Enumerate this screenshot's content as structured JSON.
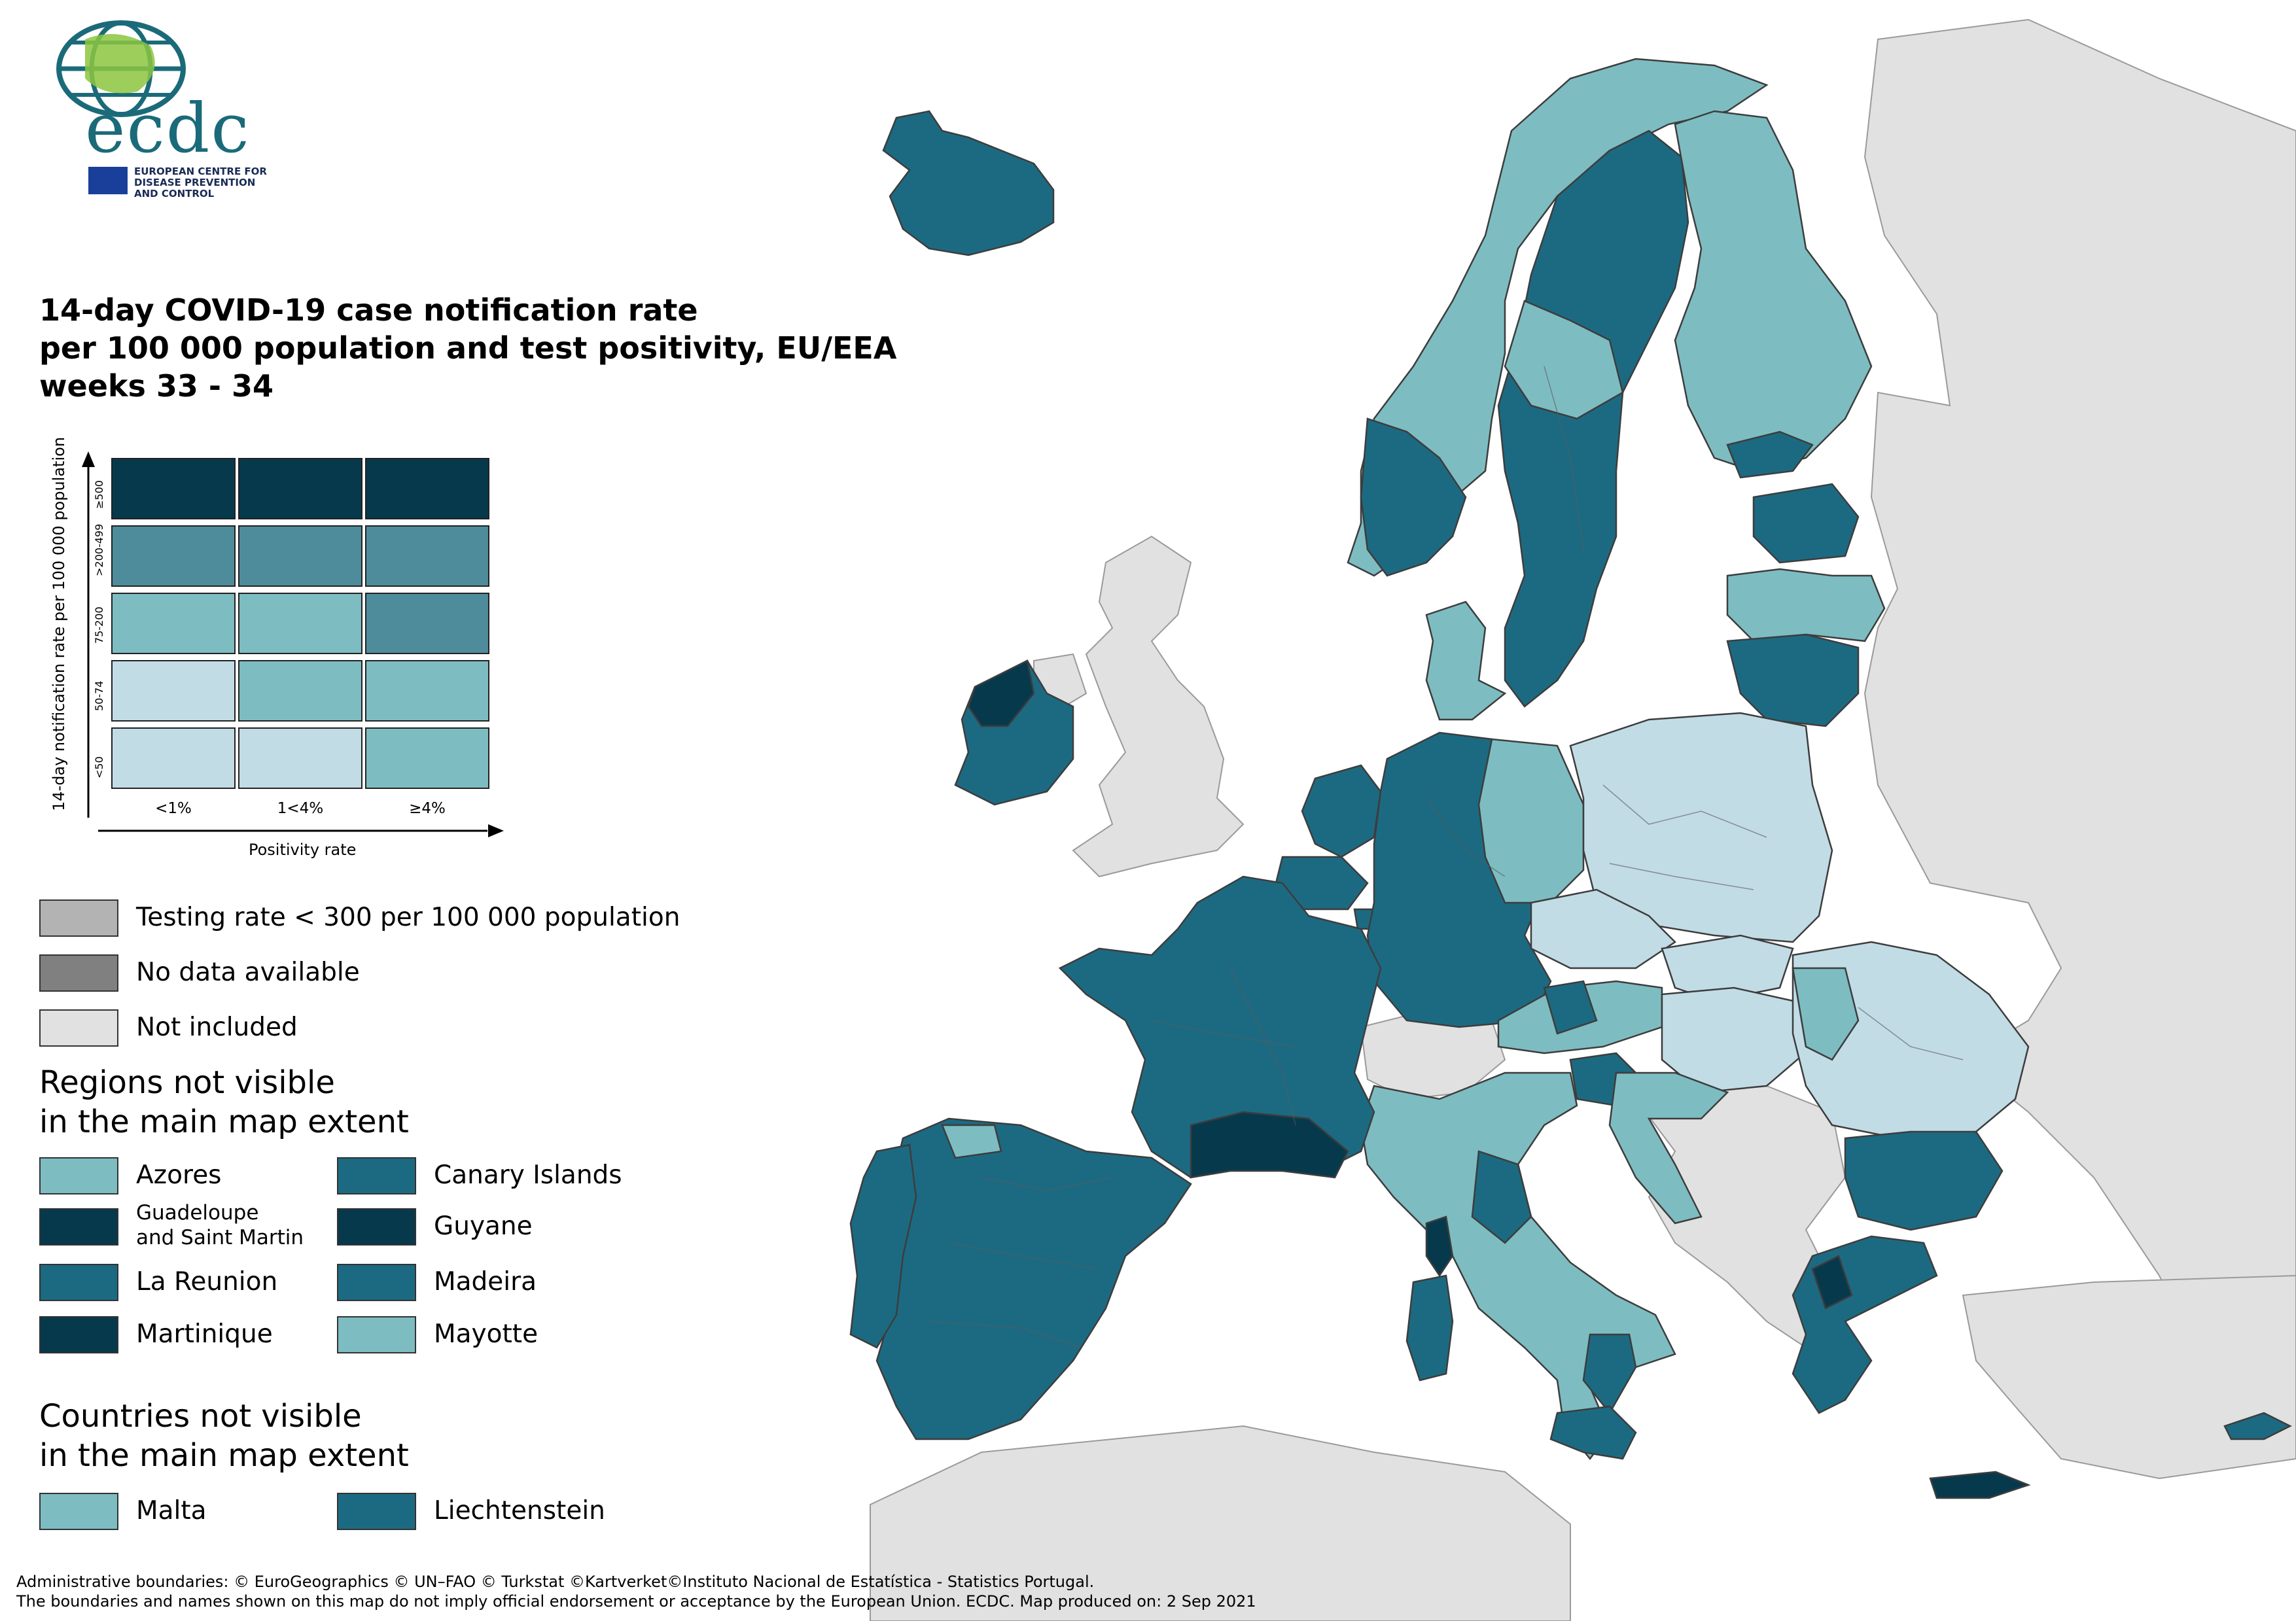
{
  "logo": {
    "wordmark": "ecdc",
    "org_line1": "EUROPEAN CENTRE FOR",
    "org_line2": "DISEASE PREVENTION",
    "org_line3": "AND CONTROL"
  },
  "title": {
    "line1": "14-day COVID-19 case notification rate",
    "line2": "per 100 000 population and test positivity, EU/EEA",
    "line3": "weeks 33 - 34"
  },
  "matrix": {
    "y_axis_label": "14-day notification rate per 100 000 population",
    "x_axis_label": "Positivity rate",
    "row_labels": [
      "≥500",
      ">200-499",
      "75-200",
      "50-74",
      "<50"
    ],
    "col_labels": [
      "<1%",
      "1<4%",
      "≥4%"
    ],
    "colors": [
      [
        "#07394d",
        "#07394d",
        "#07394d"
      ],
      [
        "#4e8c9c",
        "#4e8c9c",
        "#4e8c9c"
      ],
      [
        "#7dbdc2",
        "#7dbdc2",
        "#4e8c9c"
      ],
      [
        "#c2dce6",
        "#7dbdc2",
        "#7dbdc2"
      ],
      [
        "#c2dce6",
        "#c2dce6",
        "#7dbdc2"
      ]
    ]
  },
  "legend_general": [
    {
      "label": "Testing rate < 300 per 100 000 population",
      "color": "#b3b3b3"
    },
    {
      "label": "No data available",
      "color": "#808080"
    },
    {
      "label": "Not included",
      "color": "#e1e1e1"
    }
  ],
  "regions_heading": {
    "line1": "Regions not visible",
    "line2": "in the main map extent"
  },
  "regions": [
    {
      "label": "Azores",
      "color": "#7dbdc2"
    },
    {
      "label": "Canary Islands",
      "color": "#1c6a82"
    },
    {
      "label": "Guadeloupe",
      "label2": "and Saint Martin",
      "color": "#07394d"
    },
    {
      "label": "Guyane",
      "color": "#07394d"
    },
    {
      "label": "La Reunion",
      "color": "#1c6a82"
    },
    {
      "label": "Madeira",
      "color": "#1c6a82"
    },
    {
      "label": "Martinique",
      "color": "#07394d"
    },
    {
      "label": "Mayotte",
      "color": "#7dbdc2"
    }
  ],
  "countries_heading": {
    "line1": "Countries not visible",
    "line2": "in the main map extent"
  },
  "countries": [
    {
      "label": "Malta",
      "color": "#7dbdc2"
    },
    {
      "label": "Liechtenstein",
      "color": "#1c6a82"
    }
  ],
  "footer": {
    "line1": "Administrative boundaries: © EuroGeographics © UN–FAO © Turkstat ©Kartverket©Instituto Nacional de Estatística - Statistics Portugal.",
    "line2": "The boundaries and names shown on this map do not imply official endorsement or acceptance by the European Union. ECDC. Map produced on: 2 Sep 2021"
  },
  "map_colors": {
    "not_included": "#e1e1e1",
    "dark": "#07394d",
    "teal_dark": "#1c6a82",
    "teal_mid": "#4e8c9c",
    "teal_light": "#7dbdc2",
    "pale": "#c2dce6",
    "sea": "#ffffff",
    "border": "#5a5a5a"
  }
}
